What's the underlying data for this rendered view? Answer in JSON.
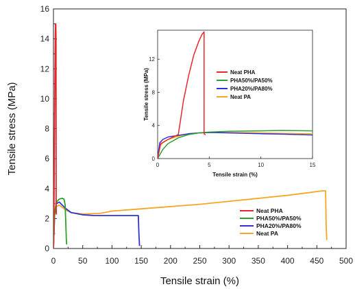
{
  "chart_data": [
    {
      "type": "line",
      "xlabel": "Tensile strain (%)",
      "ylabel": "Tensile stress (MPa)",
      "xlim": [
        0,
        500
      ],
      "ylim": [
        0,
        16
      ],
      "xticks": [
        0,
        50,
        100,
        150,
        200,
        250,
        300,
        350,
        400,
        450,
        500
      ],
      "yticks": [
        0,
        2,
        4,
        6,
        8,
        10,
        12,
        14,
        16
      ],
      "legend_position": "bottom-right",
      "series": [
        {
          "name": "Neat PHA",
          "color": "#e8262b",
          "x": [
            0,
            1,
            2,
            3,
            3.5,
            4,
            4.4,
            4.6,
            4.8,
            5
          ],
          "y": [
            0,
            3,
            9,
            14,
            15,
            15,
            14,
            3,
            2.5,
            2.3
          ]
        },
        {
          "name": "PHA50%/PA50%",
          "color": "#2ca02c",
          "x": [
            0,
            2,
            5,
            10,
            15,
            18,
            20,
            21,
            22,
            22.5
          ],
          "y": [
            0,
            2.4,
            3.1,
            3.3,
            3.35,
            3.3,
            2.9,
            1.8,
            0.6,
            0.3
          ]
        },
        {
          "name": "PHA20%/PA80%",
          "color": "#3030d8",
          "x": [
            0,
            2,
            5,
            10,
            15,
            20,
            30,
            50,
            70,
            100,
            120,
            140,
            145,
            146,
            147
          ],
          "y": [
            0,
            2.3,
            3.0,
            3.1,
            2.9,
            2.7,
            2.4,
            2.25,
            2.2,
            2.2,
            2.2,
            2.2,
            2.2,
            1.0,
            0.2
          ]
        },
        {
          "name": "Neat PA",
          "color": "#f5a623",
          "x": [
            0,
            2,
            5,
            10,
            20,
            30,
            50,
            80,
            100,
            150,
            200,
            250,
            300,
            350,
            400,
            440,
            460,
            465,
            466,
            467
          ],
          "y": [
            0,
            2.2,
            2.8,
            2.9,
            2.6,
            2.4,
            2.3,
            2.35,
            2.5,
            2.65,
            2.8,
            2.95,
            3.15,
            3.35,
            3.55,
            3.75,
            3.85,
            3.85,
            1.5,
            0.6
          ]
        }
      ]
    },
    {
      "type": "line",
      "inset": true,
      "xlabel": "Tensile strain (%)",
      "ylabel": "Tensile stress (MPa)",
      "xlim": [
        0,
        15
      ],
      "ylim": [
        0,
        15.5
      ],
      "xticks": [
        0,
        5,
        10,
        15
      ],
      "yticks": [
        0,
        4,
        8,
        12
      ],
      "legend_position": "center",
      "series": [
        {
          "name": "Neat PHA",
          "color": "#e8262b",
          "x": [
            0,
            0.3,
            1,
            1.5,
            2,
            2.2,
            2.5,
            3,
            3.5,
            4,
            4.3,
            4.5,
            4.5,
            4.6
          ],
          "y": [
            0,
            1.8,
            2.3,
            2.6,
            2.9,
            4.5,
            7,
            10,
            12.5,
            14.2,
            15,
            15.3,
            3.0,
            2.9
          ]
        },
        {
          "name": "PHA50%/PA50%",
          "color": "#2ca02c",
          "x": [
            0,
            0.5,
            1,
            2,
            3,
            4,
            5,
            7,
            10,
            12,
            15
          ],
          "y": [
            0,
            1.1,
            1.8,
            2.5,
            2.9,
            3.1,
            3.2,
            3.3,
            3.35,
            3.4,
            3.35
          ]
        },
        {
          "name": "PHA20%/PA80%",
          "color": "#3030d8",
          "x": [
            0,
            0.2,
            0.5,
            1,
            2,
            3,
            4,
            5,
            7,
            10,
            12,
            15
          ],
          "y": [
            0,
            1.9,
            2.3,
            2.6,
            2.8,
            3.0,
            3.1,
            3.15,
            3.1,
            3.0,
            2.95,
            2.85
          ]
        },
        {
          "name": "Neat PA",
          "color": "#f5a623",
          "x": [
            0,
            0.2,
            0.5,
            1,
            2,
            3,
            4,
            5,
            7,
            10,
            12,
            15
          ],
          "y": [
            0,
            1.5,
            1.9,
            2.3,
            2.7,
            3.0,
            3.1,
            3.15,
            3.15,
            3.1,
            3.05,
            3.0
          ]
        }
      ]
    }
  ]
}
